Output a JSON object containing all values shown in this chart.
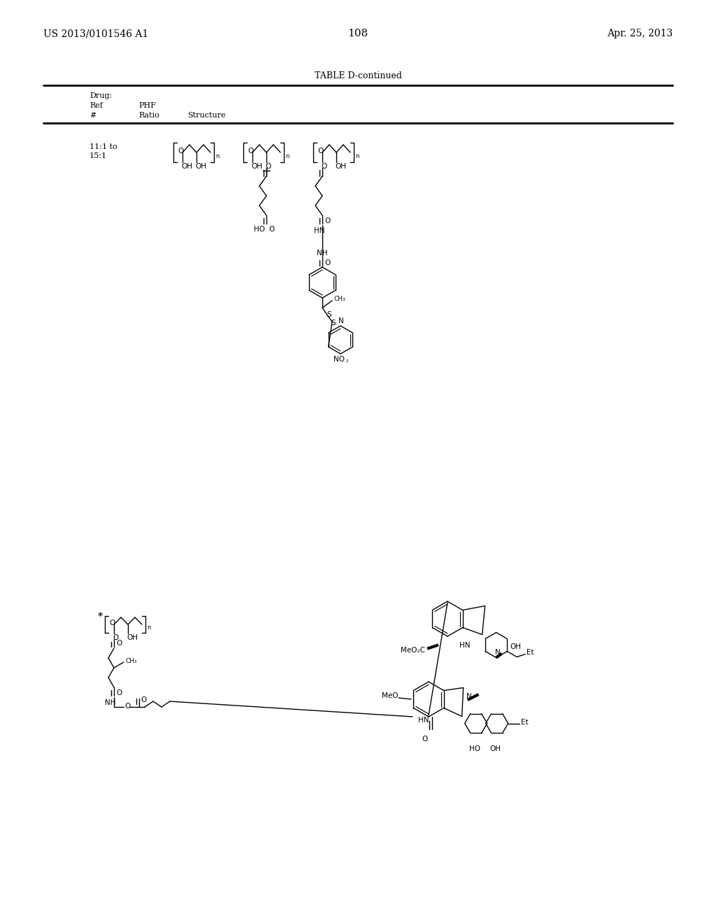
{
  "background_color": "#ffffff",
  "page_number": "108",
  "patent_number": "US 2013/0101546 A1",
  "patent_date": "Apr. 25, 2013",
  "table_title": "TABLE D-continued",
  "header_drug": "Drug:",
  "header_ref": "Ref",
  "header_phf": "PHF",
  "header_hash": "#",
  "header_ratio": "Ratio",
  "header_structure": "Structure",
  "row_ratio": "11:1 to\n15:1"
}
